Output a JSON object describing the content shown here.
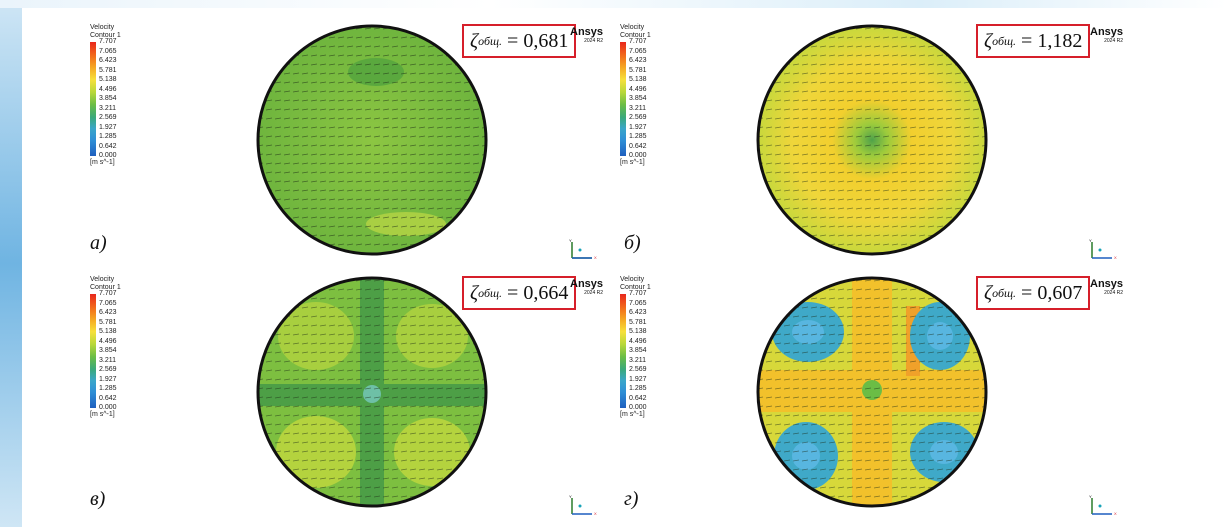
{
  "legend": {
    "title_line1": "Velocity",
    "title_line2": "Contour 1",
    "ticks": [
      "7.707",
      "7.065",
      "6.423",
      "5.781",
      "5.138",
      "4.496",
      "3.854",
      "3.211",
      "2.569",
      "1.927",
      "1.285",
      "0.642",
      "0.000"
    ],
    "unit": "[m s^-1]"
  },
  "brand": {
    "name": "Ansys",
    "version": "2024 R2"
  },
  "colors": {
    "frame": "#d61f2a",
    "scale_top": "#e8271d",
    "scale_bottom": "#1f5fbf"
  },
  "panels": [
    {
      "label": "а)",
      "zeta_symbol": "ζ",
      "zeta_sub": "общ.",
      "zeta_value": "= 0,681"
    },
    {
      "label": "б)",
      "zeta_symbol": "ζ",
      "zeta_sub": "общ.",
      "zeta_value": "= 1,182"
    },
    {
      "label": "в)",
      "zeta_symbol": "ζ",
      "zeta_sub": "общ.",
      "zeta_value": "= 0,664"
    },
    {
      "label": "г)",
      "zeta_symbol": "ζ",
      "zeta_sub": "общ.",
      "zeta_value": "= 0,607"
    }
  ]
}
